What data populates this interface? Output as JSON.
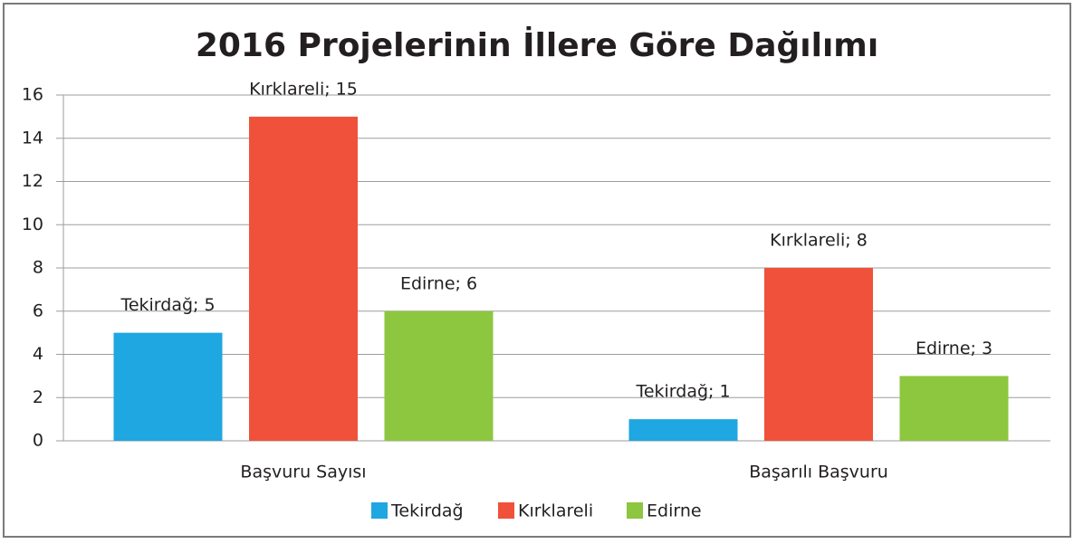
{
  "chart_data": {
    "type": "bar",
    "title": "2016 Projelerinin İllere Göre Dağılımı",
    "categories": [
      "Başvuru Sayısı",
      "Başarılı Başvuru"
    ],
    "series": [
      {
        "name": "Tekirdağ",
        "color": "#1ea7e1",
        "values": [
          5,
          1
        ],
        "value_labels": [
          "Tekirdağ; 5",
          "Tekirdağ; 1"
        ]
      },
      {
        "name": "Kırklareli",
        "color": "#f0513a",
        "values": [
          15,
          8
        ],
        "value_labels": [
          "Kırklareli; 15",
          "Kırklareli; 8"
        ]
      },
      {
        "name": "Edirne",
        "color": "#8dc63f",
        "values": [
          6,
          3
        ],
        "value_labels": [
          "Edirne; 6",
          "Edirne; 3"
        ]
      }
    ],
    "ylim": [
      0,
      16
    ],
    "yticks": [
      0,
      2,
      4,
      6,
      8,
      10,
      12,
      14,
      16
    ],
    "grid": true,
    "legend": "bottom"
  }
}
